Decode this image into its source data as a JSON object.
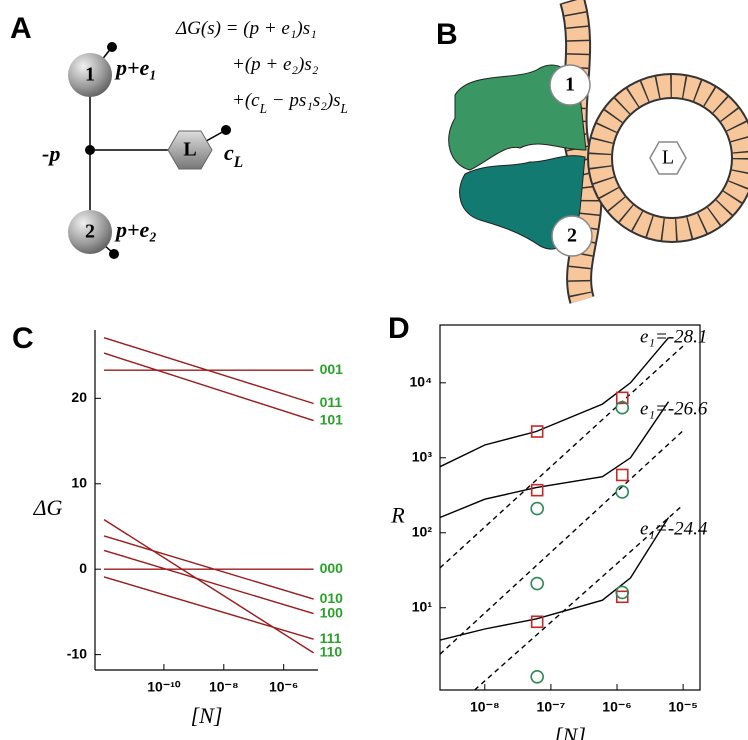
{
  "diagram_a": {
    "label": "A",
    "equation": [
      [
        {
          "text": "ΔG(s) = (p + e₁)s₁"
        }
      ],
      [
        {
          "text": "+(p + e₂)s₂"
        }
      ],
      [
        {
          "text": "+(c"
        },
        {
          "sub": "L"
        },
        {
          "text": " − ps₁s₂)s"
        },
        {
          "sub": "L"
        }
      ]
    ],
    "nodes": [
      {
        "label": "1",
        "annotation": [
          {
            "text": "p+e₁"
          }
        ]
      },
      {
        "label": "2",
        "annotation": [
          {
            "text": "p+e₂"
          }
        ]
      },
      {
        "label": "L",
        "annotation": [
          {
            "text": "c"
          },
          {
            "sub": "L"
          }
        ]
      }
    ],
    "center": "-p"
  },
  "diagram_b": {
    "label": "B",
    "nodes": [
      "1",
      "2",
      "L"
    ]
  },
  "chart_data": [
    {
      "type": "line",
      "panel_label": "C",
      "xlabel": "[N]",
      "ylabel": "ΔG",
      "log_x": true,
      "log_y": false,
      "xlim": [
        5e-13,
        1.4e-05
      ],
      "ylim": [
        -11.8,
        28
      ],
      "xticks": [
        {
          "value": 1e-10,
          "label": "10⁻¹⁰"
        },
        {
          "value": 1e-08,
          "label": "10⁻⁸"
        },
        {
          "value": 1e-06,
          "label": "10⁻⁶"
        }
      ],
      "yticks": [
        -10,
        0,
        10,
        20
      ],
      "frame": "left-bottom",
      "label_color": "#2ca02c",
      "series": [
        {
          "name": "001",
          "color": "#9b1c1c",
          "style": "solid",
          "x": [
            1e-12,
            1e-05
          ],
          "values": [
            23.3,
            23.3
          ]
        },
        {
          "name": "011",
          "color": "#9b1c1c",
          "style": "solid",
          "x": [
            1e-12,
            1e-05
          ],
          "values": [
            27.1,
            19.4
          ]
        },
        {
          "name": "101",
          "color": "#9b1c1c",
          "style": "solid",
          "x": [
            1e-12,
            1e-05
          ],
          "values": [
            25.3,
            17.4
          ]
        },
        {
          "name": "000",
          "color": "#9b1c1c",
          "style": "solid",
          "x": [
            1e-12,
            1e-05
          ],
          "values": [
            0,
            0
          ]
        },
        {
          "name": "010",
          "color": "#9b1c1c",
          "style": "solid",
          "x": [
            1e-12,
            1e-05
          ],
          "values": [
            3.9,
            -3.5
          ]
        },
        {
          "name": "100",
          "color": "#9b1c1c",
          "style": "solid",
          "x": [
            1e-12,
            1e-05
          ],
          "values": [
            2.2,
            -5.2
          ]
        },
        {
          "name": "111",
          "color": "#9b1c1c",
          "style": "solid",
          "x": [
            1e-12,
            1e-05
          ],
          "values": [
            -0.9,
            -8.2
          ]
        },
        {
          "name": "110",
          "color": "#9b1c1c",
          "style": "solid",
          "x": [
            1e-12,
            1e-05
          ],
          "values": [
            5.8,
            -9.8
          ]
        }
      ]
    },
    {
      "type": "line",
      "panel_label": "D",
      "xlabel": "[N]",
      "ylabel": "R",
      "log_x": true,
      "log_y": true,
      "xlim": [
        2.1e-09,
        1.8e-05
      ],
      "ylim": [
        0.8,
        59000
      ],
      "xticks": [
        {
          "value": 1e-08,
          "label": "10⁻⁸"
        },
        {
          "value": 1e-07,
          "label": "10⁻⁷"
        },
        {
          "value": 1e-06,
          "label": "10⁻⁶"
        },
        {
          "value": 1e-05,
          "label": "10⁻⁵"
        }
      ],
      "yticks": [
        {
          "value": 10,
          "label": "10¹"
        },
        {
          "value": 100,
          "label": "10²"
        },
        {
          "value": 1000,
          "label": "10³"
        },
        {
          "value": 10000,
          "label": "10⁴"
        }
      ],
      "frame": "box",
      "annotations": [
        "e₁=-28.1",
        "e₁=-26.6",
        "e₁=-24.4"
      ],
      "series": [
        {
          "color": "#000000",
          "style": "solid",
          "x": [
            2.1e-09,
            1e-08,
            6e-08,
            6e-07,
            1.6e-06,
            6e-06
          ],
          "values": [
            760,
            1480,
            2240,
            5200,
            10000,
            40000
          ]
        },
        {
          "color": "#000000",
          "style": "solid",
          "x": [
            2.1e-09,
            1e-08,
            6e-08,
            6e-07,
            1.6e-06,
            6e-06
          ],
          "values": [
            160,
            280,
            400,
            560,
            1000,
            5600
          ]
        },
        {
          "color": "#000000",
          "style": "solid",
          "x": [
            2.1e-09,
            1e-08,
            6e-08,
            6e-07,
            1.6e-06,
            6e-06
          ],
          "values": [
            3.7,
            5.2,
            7.1,
            12.6,
            25,
            160
          ]
        },
        {
          "color": "#000000",
          "style": "dashed",
          "x": [
            2.1e-09,
            1e-05
          ],
          "values": [
            34,
            31000
          ]
        },
        {
          "color": "#000000",
          "style": "dashed",
          "x": [
            2.1e-09,
            1e-05
          ],
          "values": [
            2.4,
            2300
          ]
        },
        {
          "color": "#000000",
          "style": "dashed",
          "x": [
            7e-09,
            1e-05
          ],
          "values": [
            0.8,
            235
          ]
        },
        {
          "color": "#c62828",
          "style": "square",
          "x": [
            6.2e-08,
            1.2e-06,
            6.2e-08,
            1.2e-06,
            6.2e-08,
            1.2e-06
          ],
          "values": [
            2240,
            6300,
            370,
            590,
            6.5,
            14
          ]
        },
        {
          "color": "#2e8b57",
          "style": "circle",
          "x": [
            6.2e-08,
            1.2e-06,
            6.2e-08,
            1.2e-06,
            6.2e-08,
            1.2e-06
          ],
          "values": [
            210,
            4650,
            21,
            350,
            1.2,
            16
          ]
        }
      ]
    }
  ]
}
